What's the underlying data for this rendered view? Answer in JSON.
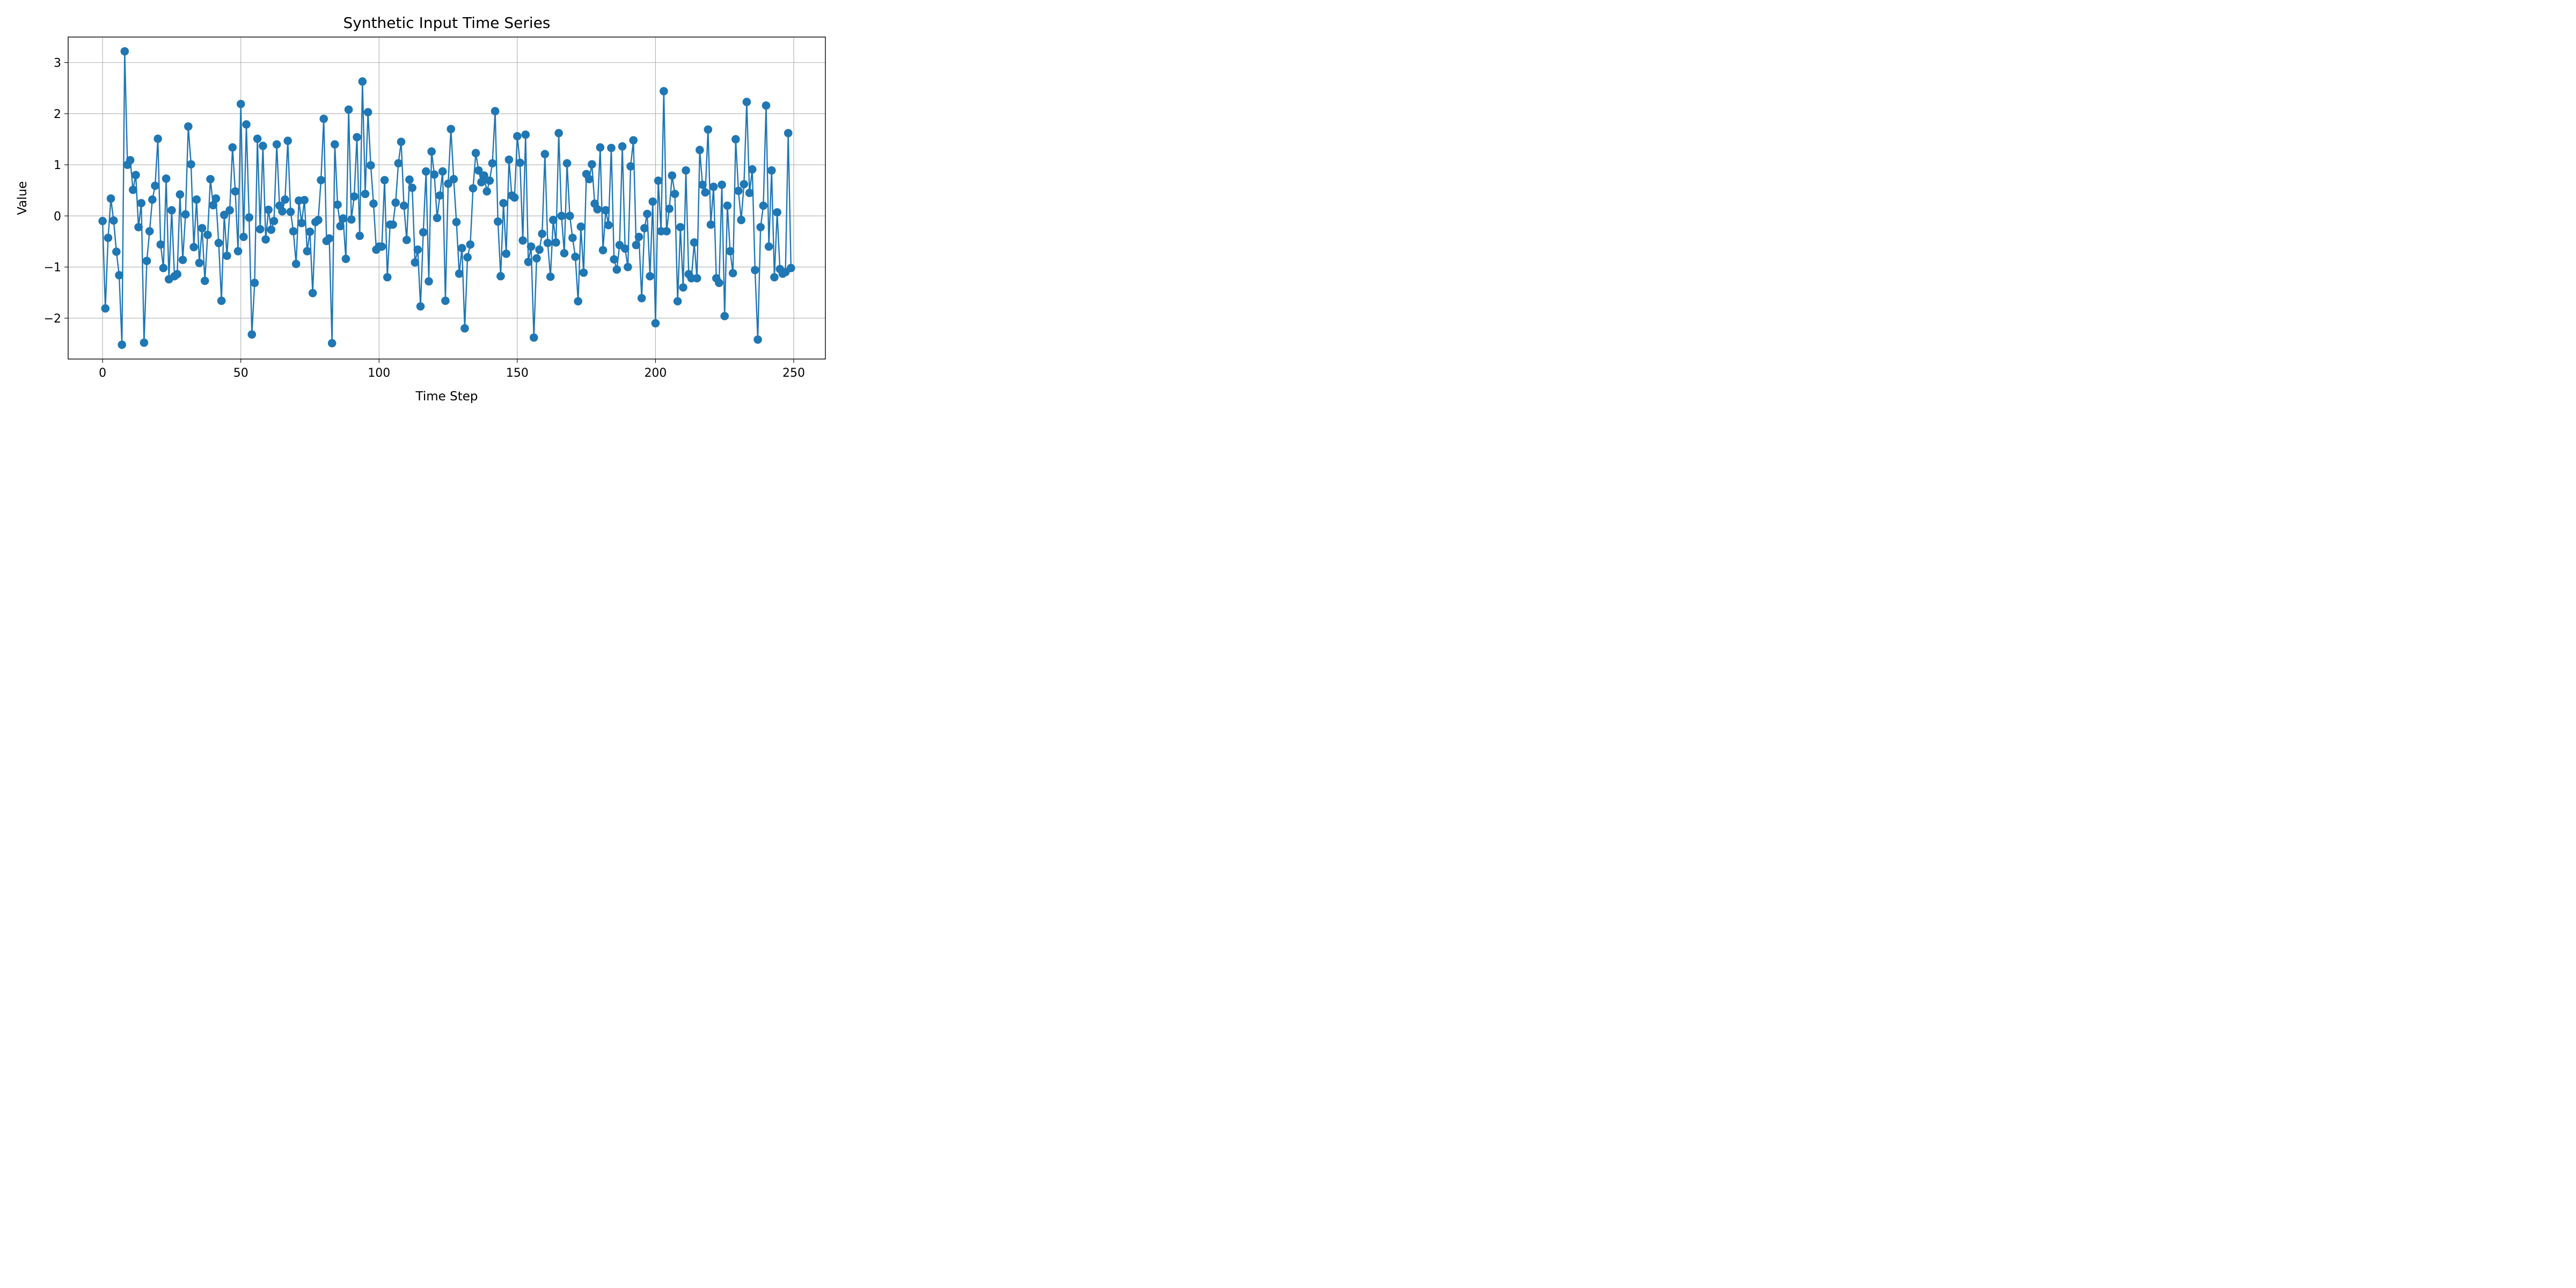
{
  "chart_data": {
    "type": "line",
    "title": "Synthetic Input Time Series",
    "xlabel": "Time Step",
    "ylabel": "Value",
    "xlim": [
      -12.45,
      261.45
    ],
    "ylim": [
      -2.8,
      3.5
    ],
    "xticks": [
      0,
      50,
      100,
      150,
      200,
      250
    ],
    "yticks": [
      -2,
      -1,
      0,
      1,
      2,
      3
    ],
    "xtick_labels": [
      "0",
      "50",
      "100",
      "150",
      "200",
      "250"
    ],
    "ytick_labels": [
      "−2",
      "−1",
      "0",
      "1",
      "2",
      "3"
    ],
    "grid": true,
    "legend": false,
    "series": [
      {
        "color": "#1f77b4",
        "marker": "circle",
        "x_start": 0,
        "x_step": 1,
        "values": [
          -0.1,
          -1.81,
          -0.43,
          0.34,
          -0.09,
          -0.7,
          -1.16,
          -2.52,
          3.22,
          1.0,
          1.09,
          0.51,
          0.8,
          -0.22,
          0.25,
          -2.48,
          -0.88,
          -0.3,
          0.32,
          0.59,
          1.51,
          -0.56,
          -1.02,
          0.73,
          -1.24,
          0.11,
          -1.18,
          -1.14,
          0.42,
          -0.86,
          0.03,
          1.75,
          1.01,
          -0.61,
          0.32,
          -0.92,
          -0.24,
          -1.27,
          -0.37,
          0.72,
          0.21,
          0.34,
          -0.53,
          -1.66,
          0.02,
          -0.78,
          0.11,
          1.34,
          0.48,
          -0.69,
          2.19,
          -0.41,
          1.79,
          -0.03,
          -2.32,
          -1.31,
          1.51,
          -0.26,
          1.37,
          -0.46,
          0.12,
          -0.27,
          -0.1,
          1.4,
          0.2,
          0.09,
          0.32,
          1.47,
          0.08,
          -0.3,
          -0.94,
          0.3,
          -0.14,
          0.31,
          -0.69,
          -0.31,
          -1.51,
          -0.12,
          -0.08,
          0.7,
          1.9,
          -0.49,
          -0.44,
          -2.49,
          1.4,
          0.22,
          -0.2,
          -0.05,
          -0.84,
          2.08,
          -0.07,
          0.38,
          1.54,
          -0.39,
          2.63,
          0.43,
          2.03,
          0.99,
          0.24,
          -0.66,
          -0.6,
          -0.6,
          0.7,
          -1.2,
          -0.17,
          -0.17,
          0.26,
          1.03,
          1.45,
          0.2,
          -0.47,
          0.71,
          0.55,
          -0.91,
          -0.66,
          -1.77,
          -0.32,
          0.87,
          -1.28,
          1.26,
          0.81,
          -0.04,
          0.4,
          0.87,
          -1.66,
          0.63,
          1.7,
          0.72,
          -0.12,
          -1.13,
          -0.63,
          -2.2,
          -0.81,
          -0.56,
          0.54,
          1.23,
          0.89,
          0.66,
          0.79,
          0.48,
          0.69,
          1.03,
          2.05,
          -0.11,
          -1.18,
          0.25,
          -0.74,
          1.1,
          0.4,
          0.36,
          1.56,
          1.04,
          -0.48,
          1.59,
          -0.9,
          -0.6,
          -2.38,
          -0.83,
          -0.66,
          -0.35,
          1.21,
          -0.53,
          -1.19,
          -0.08,
          -0.52,
          1.62,
          0.0,
          -0.73,
          1.03,
          0.0,
          -0.43,
          -0.8,
          -1.67,
          -0.21,
          -1.11,
          0.82,
          0.72,
          1.01,
          0.24,
          0.13,
          1.34,
          -0.67,
          0.11,
          -0.18,
          1.33,
          -0.85,
          -1.05,
          -0.57,
          1.36,
          -0.64,
          -1.0,
          0.97,
          1.48,
          -0.57,
          -0.41,
          -1.61,
          -0.24,
          0.04,
          -1.18,
          0.28,
          -2.1,
          0.69,
          -0.3,
          2.44,
          -0.3,
          0.14,
          0.79,
          0.43,
          -1.67,
          -0.22,
          -1.4,
          0.89,
          -1.14,
          -1.22,
          -0.52,
          -1.22,
          1.29,
          0.61,
          0.46,
          1.69,
          -0.17,
          0.57,
          -1.22,
          -1.31,
          0.61,
          -1.96,
          0.2,
          -0.69,
          -1.12,
          1.5,
          0.49,
          -0.08,
          0.62,
          2.23,
          0.45,
          0.91,
          -1.06,
          -2.42,
          -0.22,
          0.2,
          2.16,
          -0.6,
          0.89,
          -1.2,
          0.07,
          -1.04,
          -1.13,
          -1.1,
          1.62,
          -1.02
        ]
      }
    ]
  }
}
